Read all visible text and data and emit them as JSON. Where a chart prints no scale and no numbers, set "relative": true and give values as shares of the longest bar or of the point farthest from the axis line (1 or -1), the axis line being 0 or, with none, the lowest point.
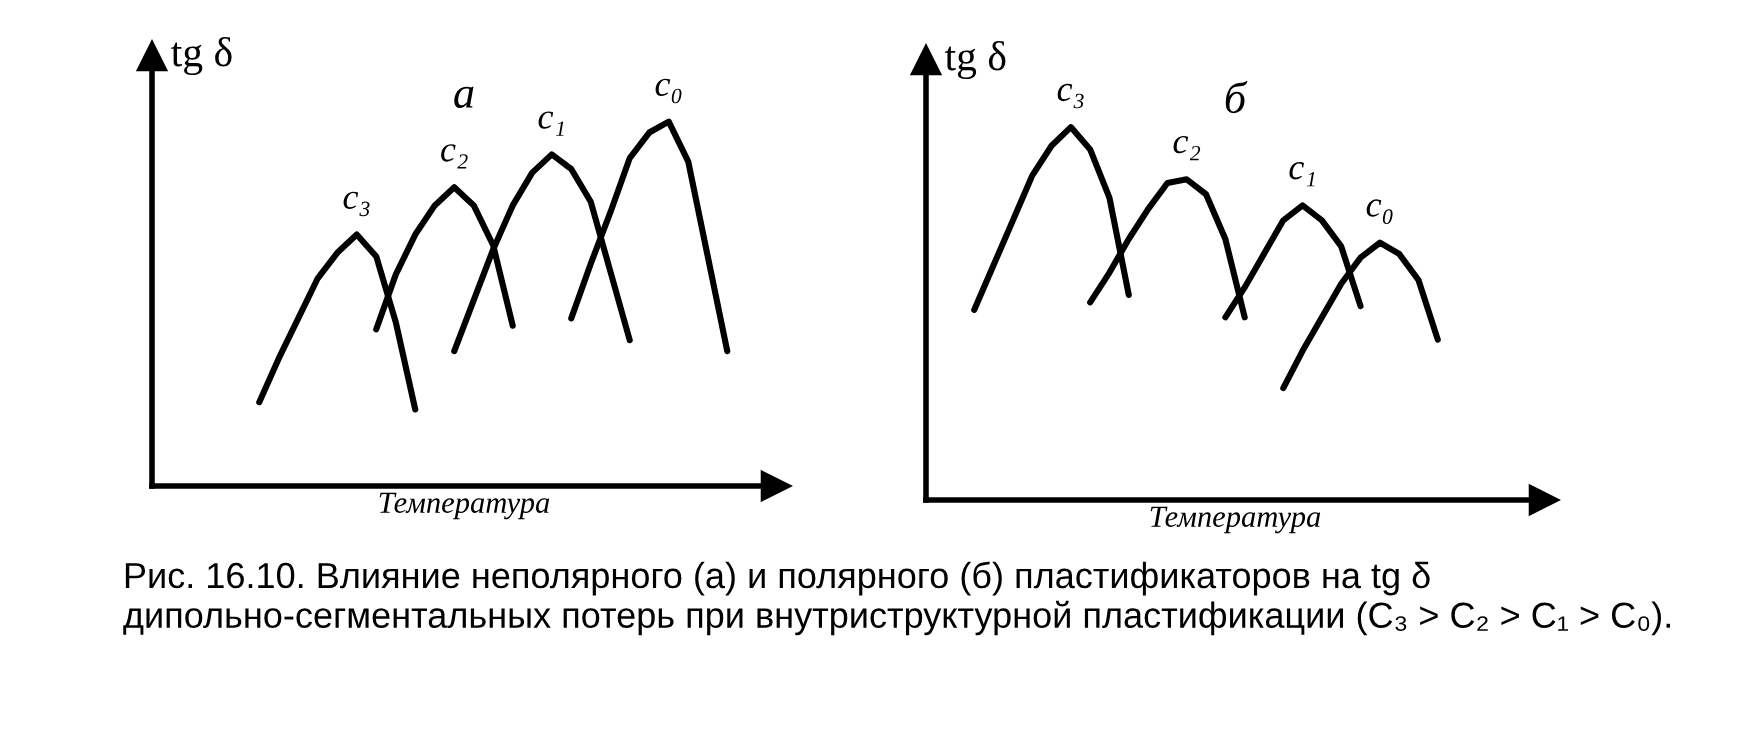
{
  "chart_data": [
    {
      "type": "line",
      "title": "а",
      "ylabel": "tg δ",
      "xlabel": "Температура",
      "relative": true,
      "tick_labels": false,
      "line_style": "solid",
      "categories": [
        null,
        null,
        null,
        null,
        null,
        null,
        null,
        null,
        null,
        null,
        null,
        null,
        null,
        null,
        null,
        null,
        null,
        null,
        null,
        null,
        null,
        null,
        null,
        null,
        null,
        null,
        null,
        null,
        null,
        null,
        null,
        null
      ],
      "series": [
        {
          "name": "c₃",
          "color": "#000000",
          "values": [
            null,
            null,
            null,
            null,
            null,
            0.23,
            0.35,
            0.46,
            0.57,
            0.64,
            0.69,
            0.63,
            0.45,
            0.21,
            null,
            null,
            null,
            null,
            null,
            null,
            null,
            null,
            null,
            null,
            null,
            null,
            null,
            null,
            null,
            null,
            null,
            null
          ]
        },
        {
          "name": "c₂",
          "color": "#000000",
          "values": [
            null,
            null,
            null,
            null,
            null,
            null,
            null,
            null,
            null,
            null,
            null,
            0.43,
            0.58,
            0.69,
            0.77,
            0.82,
            0.77,
            0.66,
            0.44,
            null,
            null,
            null,
            null,
            null,
            null,
            null,
            null,
            null,
            null,
            null,
            null,
            null
          ]
        },
        {
          "name": "c₁",
          "color": "#000000",
          "values": [
            null,
            null,
            null,
            null,
            null,
            null,
            null,
            null,
            null,
            null,
            null,
            null,
            null,
            null,
            null,
            0.37,
            0.51,
            0.65,
            0.77,
            0.86,
            0.91,
            0.87,
            0.78,
            0.59,
            0.4,
            null,
            null,
            null,
            null,
            null,
            null,
            null
          ]
        },
        {
          "name": "c₀",
          "color": "#000000",
          "values": [
            null,
            null,
            null,
            null,
            null,
            null,
            null,
            null,
            null,
            null,
            null,
            null,
            null,
            null,
            null,
            null,
            null,
            null,
            null,
            null,
            null,
            0.46,
            0.61,
            0.75,
            0.9,
            0.97,
            1.0,
            0.89,
            0.63,
            0.37,
            null,
            null
          ]
        }
      ],
      "annotations": [
        "Рис. 16.10. Влияние неполярного (а) и полярного (б) пластификаторов на tg δ дипольно-сегментальных потерь при внутриструктурной пластификации (C₃ > C₂ > C₁ > C₀)."
      ]
    },
    {
      "type": "line",
      "title": "б",
      "ylabel": "tg δ",
      "xlabel": "Температура",
      "relative": true,
      "tick_labels": false,
      "line_style": "solid",
      "categories": [
        null,
        null,
        null,
        null,
        null,
        null,
        null,
        null,
        null,
        null,
        null,
        null,
        null,
        null,
        null,
        null,
        null,
        null,
        null,
        null,
        null,
        null,
        null,
        null,
        null,
        null,
        null,
        null,
        null,
        null,
        null,
        null
      ],
      "series": [
        {
          "name": "c₃",
          "color": "#000000",
          "values": [
            null,
            null,
            0.51,
            0.63,
            0.75,
            0.87,
            0.95,
            1.0,
            0.94,
            0.81,
            0.55,
            null,
            null,
            null,
            null,
            null,
            null,
            null,
            null,
            null,
            null,
            null,
            null,
            null,
            null,
            null,
            null,
            null,
            null,
            null,
            null,
            null
          ]
        },
        {
          "name": "c₂",
          "color": "#000000",
          "values": [
            null,
            null,
            null,
            null,
            null,
            null,
            null,
            null,
            0.53,
            0.61,
            0.7,
            0.78,
            0.85,
            0.86,
            0.82,
            0.7,
            0.49,
            null,
            null,
            null,
            null,
            null,
            null,
            null,
            null,
            null,
            null,
            null,
            null,
            null,
            null,
            null
          ]
        },
        {
          "name": "c₁",
          "color": "#000000",
          "values": [
            null,
            null,
            null,
            null,
            null,
            null,
            null,
            null,
            null,
            null,
            null,
            null,
            null,
            null,
            null,
            0.49,
            0.57,
            0.66,
            0.75,
            0.79,
            0.75,
            0.68,
            0.52,
            null,
            null,
            null,
            null,
            null,
            null,
            null,
            null,
            null
          ]
        },
        {
          "name": "c₀",
          "color": "#000000",
          "values": [
            null,
            null,
            null,
            null,
            null,
            null,
            null,
            null,
            null,
            null,
            null,
            null,
            null,
            null,
            null,
            null,
            null,
            null,
            0.3,
            0.4,
            0.49,
            0.58,
            0.65,
            0.69,
            0.66,
            0.59,
            0.43,
            null,
            null,
            null,
            null,
            null
          ]
        }
      ]
    }
  ]
}
